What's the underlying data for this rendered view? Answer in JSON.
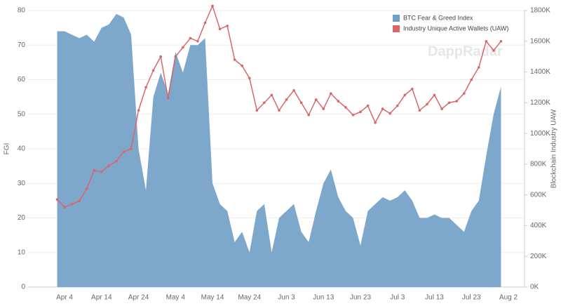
{
  "chart_data": {
    "type": "area-line",
    "watermark": "DappRadar",
    "ylabel": "FGI",
    "y2label": "Blockchain Industry UAW",
    "categories": [
      null,
      "Apr 4",
      null,
      null,
      null,
      null,
      "Apr 14",
      null,
      null,
      null,
      null,
      "Apr 24",
      null,
      null,
      null,
      null,
      "May 4",
      null,
      null,
      null,
      null,
      "May 14",
      null,
      null,
      null,
      null,
      "May 24",
      null,
      null,
      null,
      null,
      "Jun 3",
      null,
      null,
      null,
      null,
      "Jun 13",
      null,
      null,
      null,
      null,
      "Jun 23",
      null,
      null,
      null,
      null,
      "Jul 3",
      null,
      null,
      null,
      null,
      "Jul 13",
      null,
      null,
      null,
      null,
      "Jul 23",
      null,
      null,
      null,
      null,
      "Aug 2"
    ],
    "series": [
      {
        "name": "BTC Fear & Greed Index",
        "color": "#6f9ec6",
        "axis": "y",
        "values": [
          74,
          74,
          73,
          72,
          73,
          71,
          75,
          76,
          79,
          78,
          73,
          40,
          28,
          55,
          62,
          56,
          68,
          62,
          70,
          70,
          72,
          30,
          24,
          22,
          13,
          16,
          10,
          22,
          24,
          10,
          20,
          22,
          24,
          16,
          13,
          22,
          30,
          34,
          26,
          22,
          20,
          12,
          22,
          24,
          26,
          25,
          26,
          28,
          25,
          20,
          20,
          21,
          20,
          20,
          18,
          16,
          22,
          25,
          38,
          50,
          58,
          null
        ]
      },
      {
        "name": "Industry Unique Active Wallets (UAW)",
        "color": "#d9666b",
        "axis": "y2",
        "values": [
          570000,
          520000,
          540000,
          560000,
          640000,
          760000,
          750000,
          790000,
          820000,
          880000,
          900000,
          1150000,
          1300000,
          1410000,
          1500000,
          1230000,
          1500000,
          1560000,
          1620000,
          1600000,
          1720000,
          1830000,
          1680000,
          1700000,
          1480000,
          1440000,
          1360000,
          1150000,
          1200000,
          1250000,
          1150000,
          1220000,
          1280000,
          1200000,
          1120000,
          1220000,
          1160000,
          1260000,
          1210000,
          1170000,
          1120000,
          1140000,
          1180000,
          1070000,
          1160000,
          1130000,
          1180000,
          1250000,
          1290000,
          1150000,
          1190000,
          1250000,
          1160000,
          1200000,
          1210000,
          1260000,
          1350000,
          1430000,
          1600000,
          1540000,
          1600000,
          null
        ]
      }
    ],
    "ylim": [
      0,
      80
    ],
    "yticks": [
      0,
      10,
      20,
      30,
      40,
      50,
      60,
      70,
      80
    ],
    "y2lim": [
      0,
      1800000
    ],
    "y2ticks": [
      {
        "value": 0,
        "label": "0K"
      },
      {
        "value": 200000,
        "label": "200K"
      },
      {
        "value": 400000,
        "label": "400K"
      },
      {
        "value": 600000,
        "label": "600K"
      },
      {
        "value": 800000,
        "label": "800K"
      },
      {
        "value": 1000000,
        "label": "1000K"
      },
      {
        "value": 1200000,
        "label": "1200K"
      },
      {
        "value": 1400000,
        "label": "1400K"
      },
      {
        "value": 1600000,
        "label": "1600K"
      },
      {
        "value": 1800000,
        "label": "1800K"
      }
    ],
    "grid": true,
    "legend": "top-right"
  }
}
